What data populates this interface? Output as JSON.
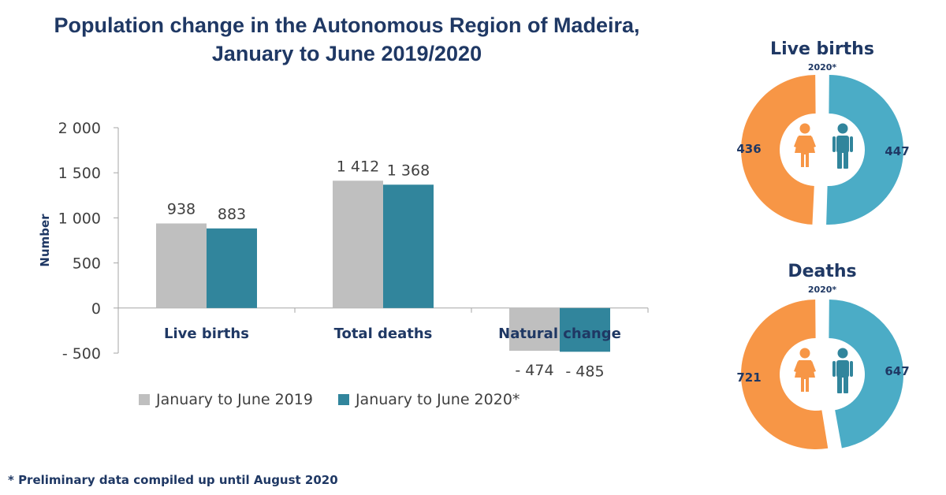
{
  "title_line1": "Population change in the Autonomous Region of Madeira,",
  "title_line2": "January to June 2019/2020",
  "chart_data": [
    {
      "type": "bar",
      "categories": [
        "Live births",
        "Total deaths",
        "Natural change"
      ],
      "series": [
        {
          "name": "January to June 2019",
          "values": [
            938,
            1412,
            -474
          ],
          "labels": [
            "938",
            "1 412",
            "- 474"
          ],
          "color": "#bfbfbf"
        },
        {
          "name": "January to June 2020*",
          "values": [
            883,
            1368,
            -485
          ],
          "labels": [
            "883",
            "1 368",
            "- 485"
          ],
          "color": "#31859c"
        }
      ],
      "ylabel": "Number",
      "ylim": [
        -500,
        2000
      ],
      "yticks": [
        -500,
        0,
        500,
        1000,
        1500,
        2000
      ],
      "ytick_labels": [
        "- 500",
        "0",
        "500",
        "1 000",
        "1 500",
        "2 000"
      ],
      "grid": false,
      "legend": "bottom"
    },
    {
      "type": "pie",
      "title": "Live births",
      "subtitle": "2020*",
      "categories": [
        "Female",
        "Male"
      ],
      "values": [
        436,
        447
      ],
      "colors": [
        "#f79646",
        "#4bacc6"
      ]
    },
    {
      "type": "pie",
      "title": "Deaths",
      "subtitle": "2020*",
      "categories": [
        "Female",
        "Male"
      ],
      "values": [
        721,
        647
      ],
      "colors": [
        "#f79646",
        "#4bacc6"
      ]
    }
  ],
  "footnote": "* Preliminary data compiled up until August 2020",
  "icons": {
    "female": "female-person-icon",
    "male": "male-person-icon"
  },
  "colors": {
    "title": "#1f3864",
    "female": "#f79646",
    "female_icon": "#f79646",
    "male": "#4bacc6",
    "male_icon": "#31859c"
  }
}
